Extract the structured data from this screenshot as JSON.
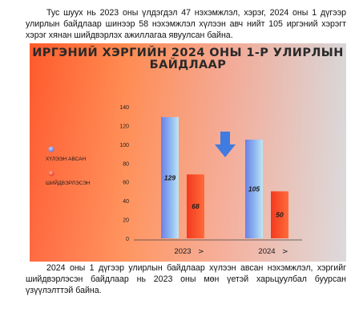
{
  "document": {
    "paragraph_1": "Тус шуух нь 2023 оны үлдэгдэл 47 нэхэмжлэл, хэрэг, 2024 оны 1 дүгээр улирлын байдлаар шинээр 58 нэхэмжлэл хүлээн авч нийт 105 иргэний хэрэгт хэрэг хянан шийдвэрлэх ажиллагаа явуулсан байна.",
    "paragraph_2": "2024 оны 1 дүгээр улирлын байдлаар хүлээн авсан нэхэмжлэл, хэргийг шийдвэрлэсэн байдлаар нь 2023 оны мөн үетэй харьцуулбал буурсан үзүүлэлттэй байна."
  },
  "chart_data": {
    "type": "bar",
    "title": "ИРГЭНИЙ ХЭРГИЙН 2024 ОНЫ 1-Р УЛИРЛЫН\nБАЙДЛААР",
    "xlabel": "",
    "ylabel": "",
    "categories": [
      "2023",
      "2024"
    ],
    "category_markers": [
      ">",
      ">"
    ],
    "series": [
      {
        "name": "ХҮЛЭЭН АВСАН",
        "values": [
          129,
          105
        ],
        "color": "#7b8dea"
      },
      {
        "name": "ШИЙДВЭРЛЭСЭН",
        "values": [
          68,
          50
        ],
        "color": "#f03a22"
      }
    ],
    "ylim": [
      0,
      140
    ],
    "yticks": [
      0,
      20,
      40,
      60,
      80,
      100,
      120,
      140
    ],
    "grid": false,
    "legend_position": "left",
    "annotation_icon": "down-arrow-icon"
  }
}
